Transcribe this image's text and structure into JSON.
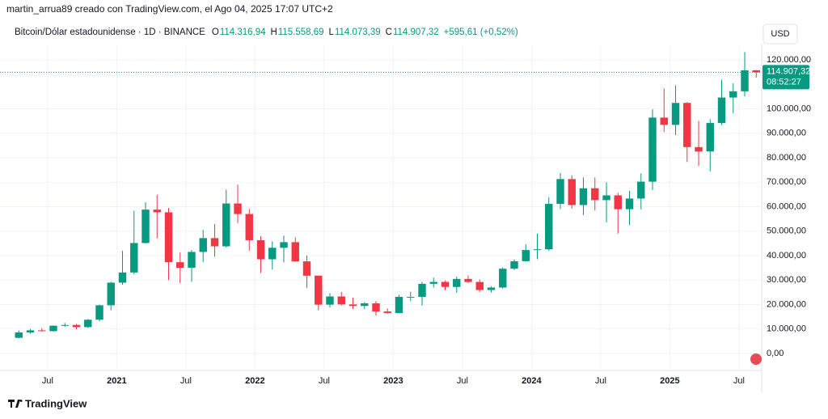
{
  "header": {
    "credit": "martin_arrua89 creado con TradingView.com, el Ago 04, 2025 17:07 UTC+2"
  },
  "chart_data": {
    "type": "candlestick",
    "title": "Bitcoin/Dólar estadounidense · 1D · BINANCE",
    "last_bar": {
      "open_key": "O",
      "open": {
        "value": 114316.94,
        "label": "114.316,94"
      },
      "high_key": "H",
      "high": {
        "value": 115558.69,
        "label": "115.558,69"
      },
      "low_key": "L",
      "low": {
        "value": 114073.39,
        "label": "114.073,39"
      },
      "close_key": "C",
      "close": {
        "value": 114907.32,
        "label": "114.907,32"
      },
      "change": "+595,61 (+0,52%)"
    },
    "currency": "USD",
    "last_price": {
      "value": 114907.32,
      "label": "114.907,32"
    },
    "countdown": "08:52:27",
    "up_color": "#089981",
    "down_color": "#f23645",
    "categories": [
      null,
      null,
      null,
      "Jul",
      null,
      null,
      null,
      null,
      null,
      "2021",
      null,
      null,
      null,
      null,
      null,
      "Jul",
      null,
      null,
      null,
      null,
      null,
      "2022",
      null,
      null,
      null,
      null,
      null,
      "Jul",
      null,
      null,
      null,
      null,
      null,
      "2023",
      null,
      null,
      null,
      null,
      null,
      "Jul",
      null,
      null,
      null,
      null,
      null,
      "2024",
      null,
      null,
      null,
      null,
      null,
      "Jul",
      null,
      null,
      null,
      null,
      null,
      "2025",
      null,
      null,
      null,
      null,
      null,
      "Jul",
      null
    ],
    "open": [
      6400,
      8600,
      9450,
      9140,
      11350,
      11650,
      10780,
      13800,
      19700,
      28950,
      33100,
      45150,
      58800,
      57700,
      37300,
      35050,
      41500,
      47150,
      43800,
      61300,
      57000,
      46300,
      38500,
      43200,
      45500,
      37650,
      31800,
      19950,
      23300,
      20050,
      19420,
      20490,
      17160,
      16540,
      23130,
      23150,
      28480,
      29250,
      27200,
      30470,
      29230,
      25940,
      26960,
      34640,
      37720,
      42280,
      42580,
      61130,
      71280,
      60670,
      67520,
      62680,
      64620,
      58970,
      63330,
      70220,
      96400,
      93430,
      102400,
      84350,
      82550,
      94200,
      104600,
      107150,
      115750
    ],
    "high": [
      9400,
      10000,
      10400,
      11450,
      12480,
      12050,
      14100,
      19900,
      29300,
      41950,
      58350,
      61800,
      64850,
      59500,
      41300,
      42300,
      50500,
      52900,
      67000,
      69000,
      59100,
      47950,
      45800,
      48200,
      47450,
      40000,
      31900,
      24650,
      25200,
      22800,
      20990,
      21450,
      18400,
      23950,
      25250,
      29200,
      31000,
      29850,
      31400,
      31800,
      30250,
      27500,
      35200,
      38450,
      44700,
      48950,
      63900,
      73800,
      72800,
      71950,
      71950,
      70000,
      65600,
      66500,
      73600,
      99800,
      108350,
      109600,
      102750,
      95050,
      95750,
      111950,
      110400,
      123200,
      115800
    ],
    "low": [
      6200,
      8100,
      8900,
      8900,
      10950,
      9850,
      10400,
      13200,
      17600,
      28100,
      32300,
      45000,
      47000,
      30000,
      28800,
      29300,
      37300,
      39600,
      43300,
      53300,
      42000,
      32900,
      34300,
      37200,
      37600,
      26700,
      17600,
      18800,
      19600,
      18150,
      18100,
      15500,
      16300,
      16500,
      21350,
      19550,
      26950,
      25800,
      24800,
      28850,
      25150,
      24900,
      26550,
      34100,
      37600,
      38550,
      41900,
      59000,
      59200,
      56600,
      58400,
      53500,
      49000,
      52550,
      58900,
      66800,
      90500,
      89250,
      78250,
      76600,
      74500,
      93350,
      98200,
      105100,
      112700
    ],
    "close": [
      8600,
      9450,
      9140,
      11350,
      11650,
      10780,
      13800,
      19700,
      28950,
      33100,
      45150,
      58800,
      57700,
      37300,
      35050,
      41500,
      47150,
      43800,
      61300,
      57000,
      46300,
      38500,
      43200,
      45500,
      37650,
      31800,
      19950,
      23300,
      20050,
      19420,
      20490,
      17160,
      16540,
      23130,
      23150,
      28480,
      29250,
      27200,
      30470,
      29230,
      25940,
      26960,
      34640,
      37720,
      42280,
      42580,
      61130,
      71280,
      60670,
      67520,
      62680,
      64620,
      58970,
      63330,
      70220,
      96400,
      93430,
      102400,
      84350,
      82550,
      94200,
      104600,
      107150,
      115750,
      114907.32
    ],
    "ylim": [
      -6940,
      126280
    ],
    "yticks": [
      {
        "value": 0,
        "label": "0,00"
      },
      {
        "value": 10000,
        "label": "10.000,00"
      },
      {
        "value": 20000,
        "label": "20.000,00"
      },
      {
        "value": 30000,
        "label": "30.000,00"
      },
      {
        "value": 40000,
        "label": "40.000,00"
      },
      {
        "value": 50000,
        "label": "50.000,00"
      },
      {
        "value": 60000,
        "label": "60.000,00"
      },
      {
        "value": 70000,
        "label": "70.000,00"
      },
      {
        "value": 80000,
        "label": "80.000,00"
      },
      {
        "value": 90000,
        "label": "90.000,00"
      },
      {
        "value": 100000,
        "label": "100.000,00"
      },
      {
        "value": 120000,
        "label": "120.000,00"
      }
    ],
    "grid": true
  },
  "footer": {
    "brand": "TradingView"
  }
}
